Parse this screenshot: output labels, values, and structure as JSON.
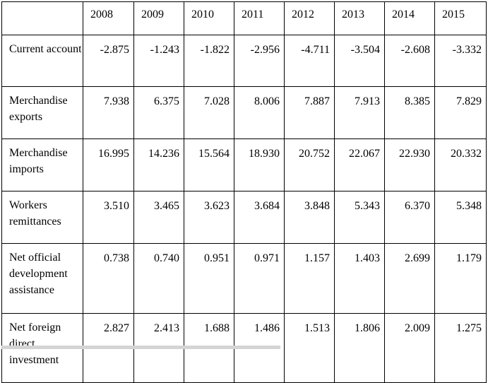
{
  "table": {
    "years": [
      "2008",
      "2009",
      "2010",
      "2011",
      "2012",
      "2013",
      "2014",
      "2015"
    ],
    "rows": [
      {
        "label": "Current account",
        "values": [
          "-2.875",
          "-1.243",
          "-1.822",
          "-2.956",
          "-4.711",
          "-3.504",
          "-2.608",
          "-3.332"
        ]
      },
      {
        "label": "Merchandise exports",
        "values": [
          "7.938",
          "6.375",
          "7.028",
          "8.006",
          "7.887",
          "7.913",
          "8.385",
          "7.829"
        ]
      },
      {
        "label": "Merchandise imports",
        "values": [
          "16.995",
          "14.236",
          "15.564",
          "18.930",
          "20.752",
          "22.067",
          "22.930",
          "20.332"
        ]
      },
      {
        "label": "Workers remittances",
        "values": [
          "3.510",
          "3.465",
          "3.623",
          "3.684",
          "3.848",
          "5.343",
          "6.370",
          "5.348"
        ]
      },
      {
        "label": "Net official development assistance",
        "values": [
          "0.738",
          "0.740",
          "0.951",
          "0.971",
          "1.157",
          "1.403",
          "2.699",
          "1.179"
        ]
      },
      {
        "label": "Net foreign direct investment",
        "values": [
          "2.827",
          "2.413",
          "1.688",
          "1.486",
          "1.513",
          "1.806",
          "2.009",
          "1.275"
        ]
      }
    ]
  }
}
